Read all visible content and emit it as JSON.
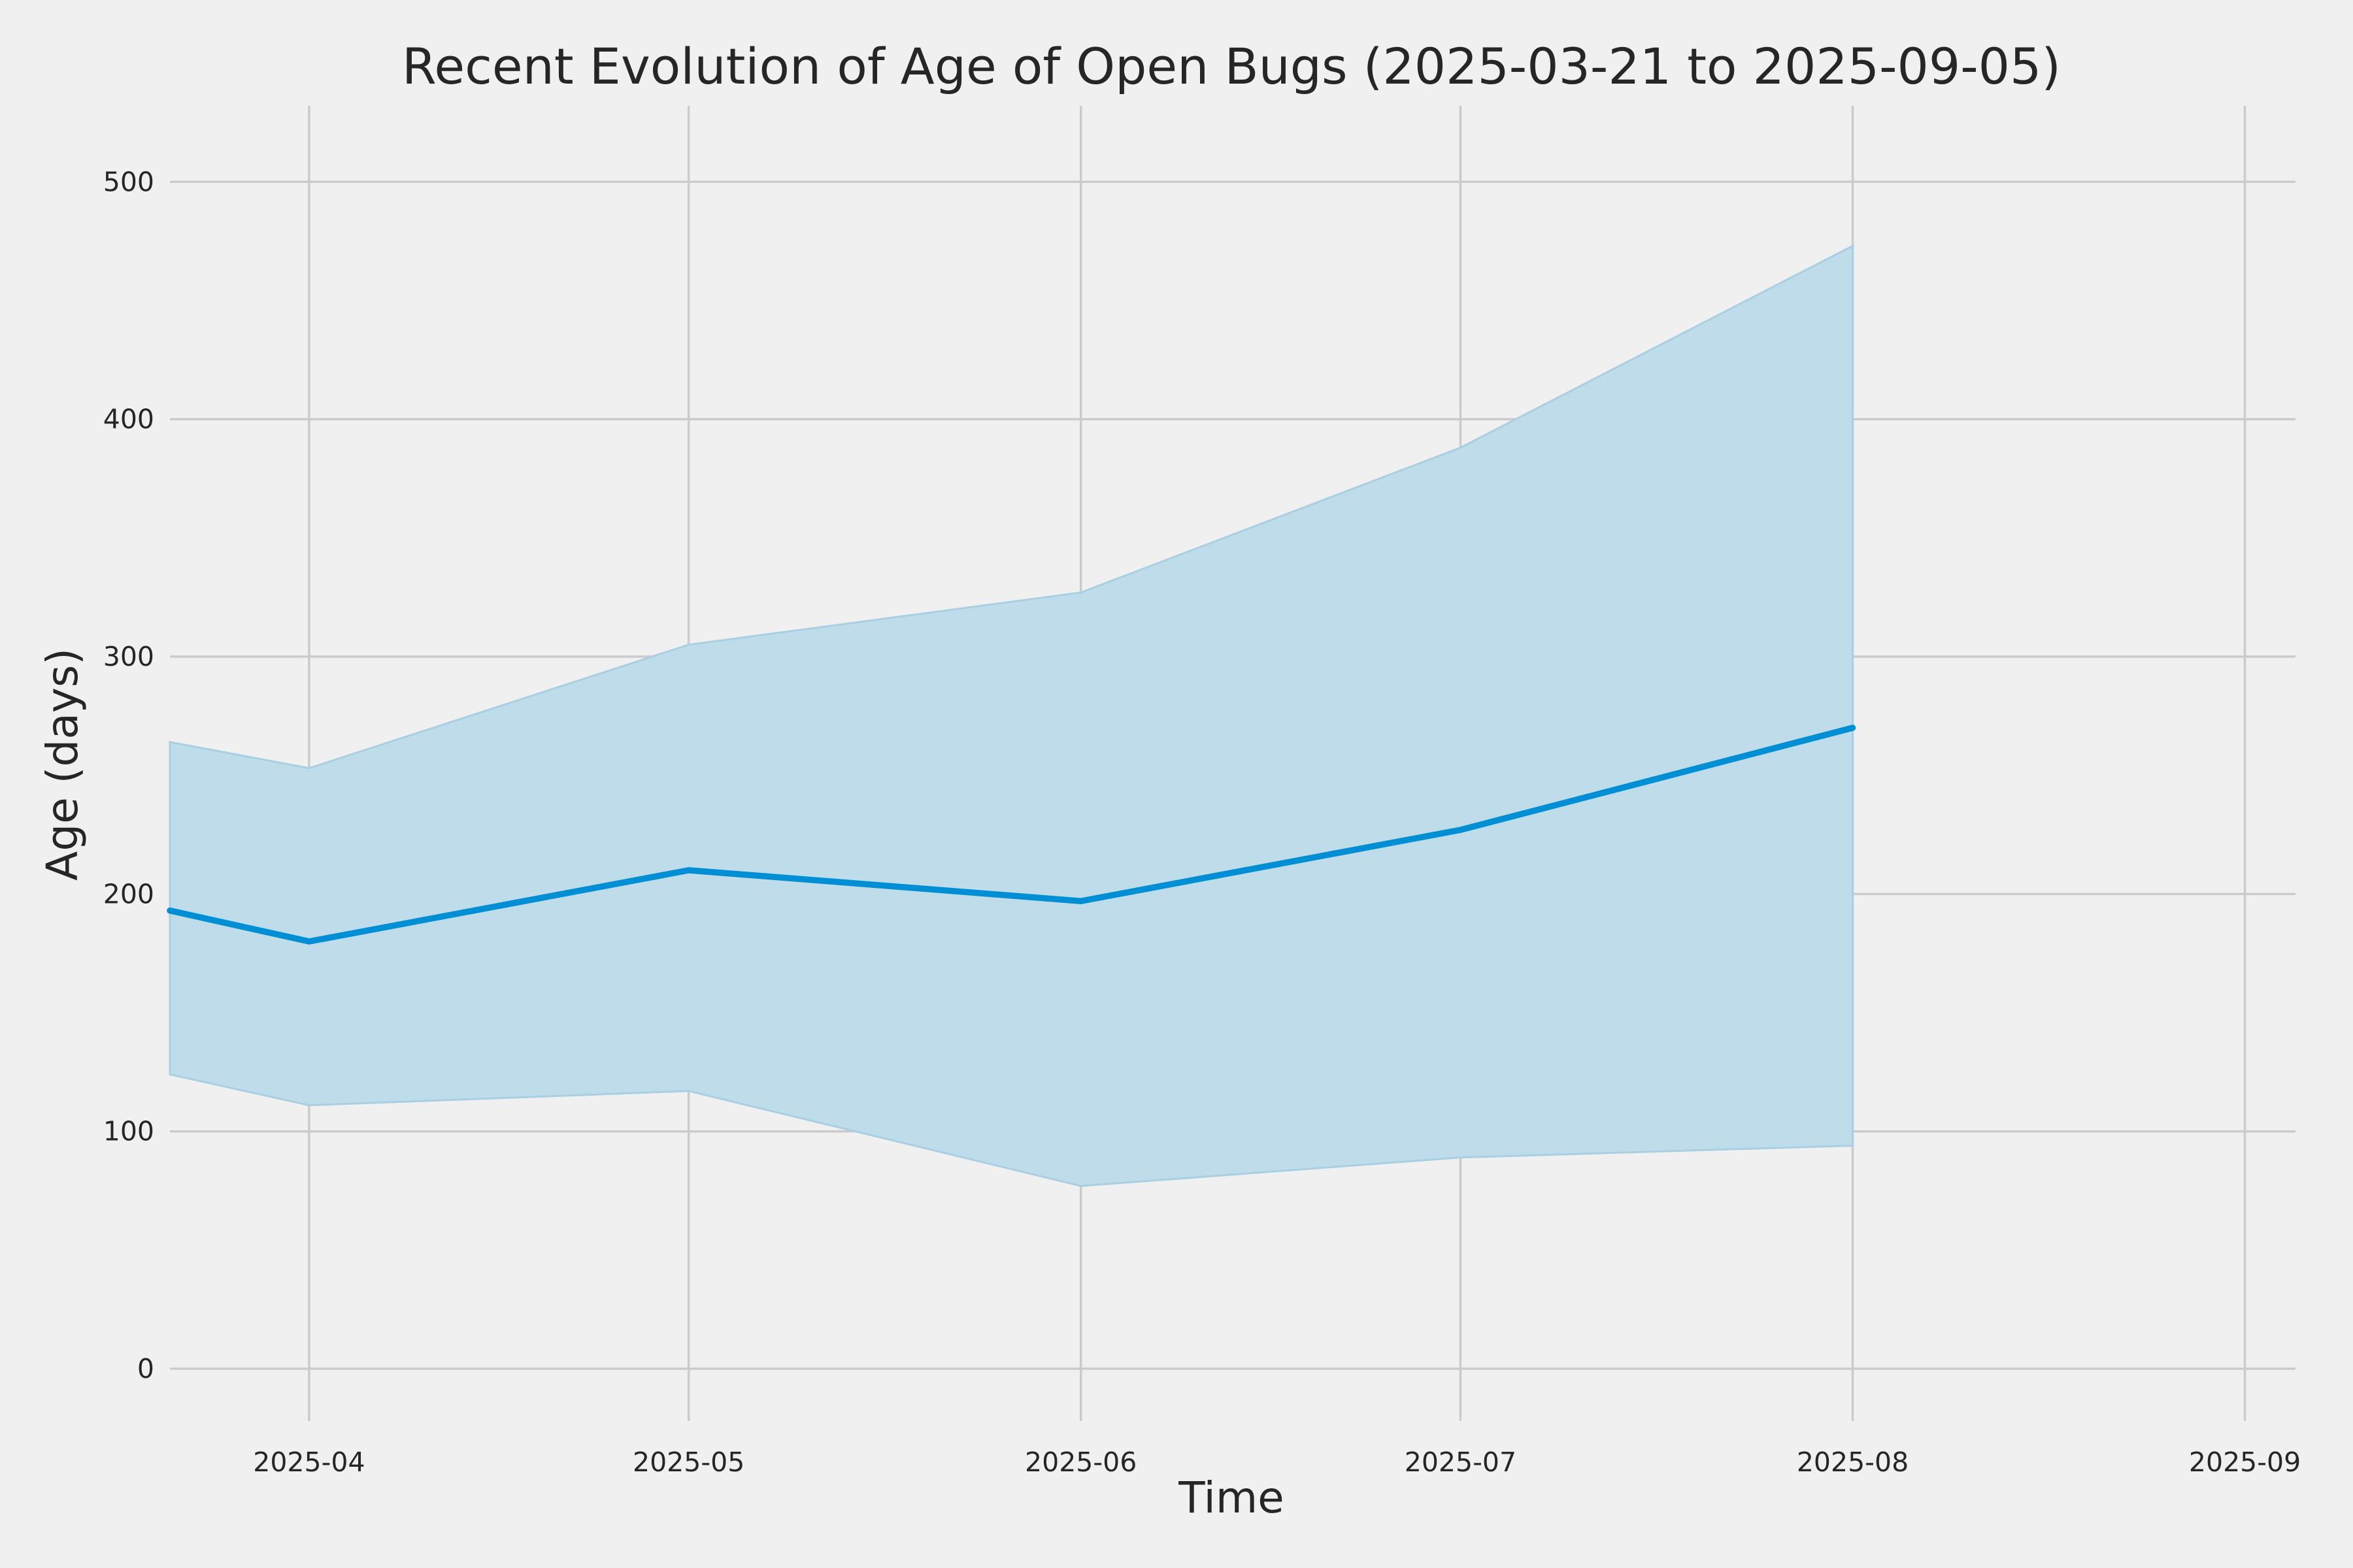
{
  "chart_data": {
    "type": "area",
    "title": "Recent Evolution of Age of Open Bugs (2025-03-21 to 2025-09-05)",
    "xlabel": "Time",
    "ylabel": "Age (days)",
    "x": [
      "2025-03-21",
      "2025-04-01",
      "2025-05-01",
      "2025-06-01",
      "2025-07-01",
      "2025-08-01"
    ],
    "series": [
      {
        "values": [
          193,
          180,
          210,
          197,
          227,
          270
        ]
      }
    ],
    "band": {
      "lower": [
        124,
        111,
        117,
        77,
        89,
        94
      ],
      "upper": [
        264,
        253,
        305,
        327,
        388,
        473
      ]
    },
    "xlim": [
      "2025-03-21",
      "2025-09-05"
    ],
    "ylim": [
      -22,
      532
    ],
    "x_ticks": [
      "2025-04",
      "2025-05",
      "2025-06",
      "2025-07",
      "2025-08",
      "2025-09"
    ],
    "y_ticks": [
      0,
      100,
      200,
      300,
      400,
      500
    ],
    "grid": true,
    "colors": {
      "line": "#008fd5",
      "band": "#bfdcea",
      "background": "#f0f0f0",
      "grid": "#cbcbcb"
    }
  }
}
